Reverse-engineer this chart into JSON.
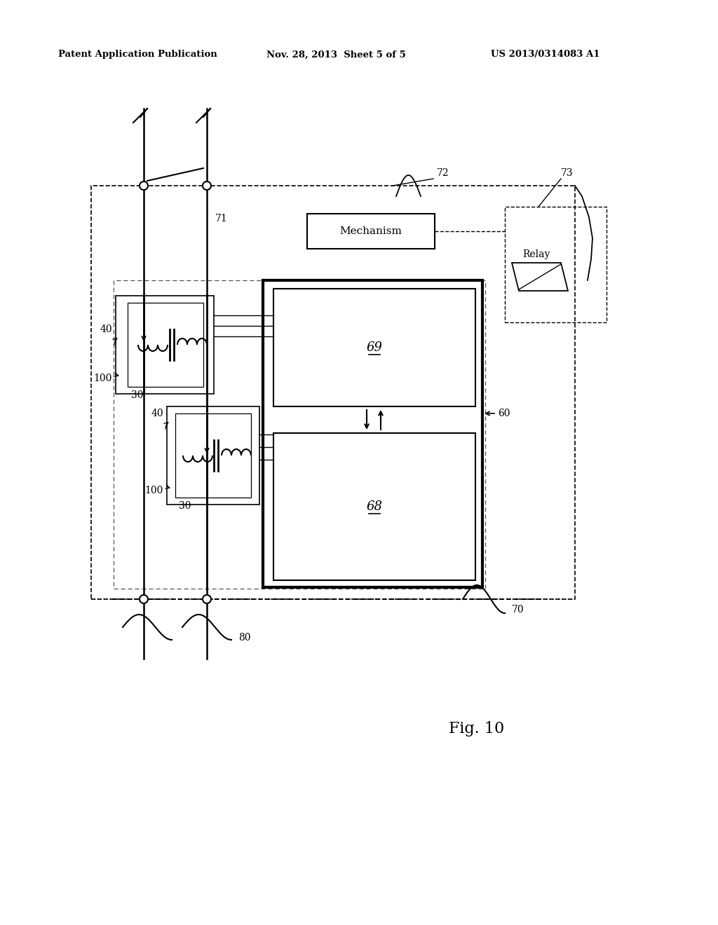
{
  "bg_color": "#ffffff",
  "header_left": "Patent Application Publication",
  "header_center": "Nov. 28, 2013  Sheet 5 of 5",
  "header_right": "US 2013/0314083 A1",
  "fig_label": "Fig. 10",
  "lbl_72": "72",
  "lbl_73": "73",
  "lbl_71": "71",
  "lbl_60": "60",
  "lbl_40a": "40",
  "lbl_40b": "40",
  "lbl_30a": "30",
  "lbl_30b": "30",
  "lbl_100a": "100",
  "lbl_100b": "100",
  "lbl_69": "69",
  "lbl_68": "68",
  "lbl_80": "80",
  "lbl_70": "70",
  "lbl_mechanism": "Mechanism",
  "lbl_relay": "Relay"
}
